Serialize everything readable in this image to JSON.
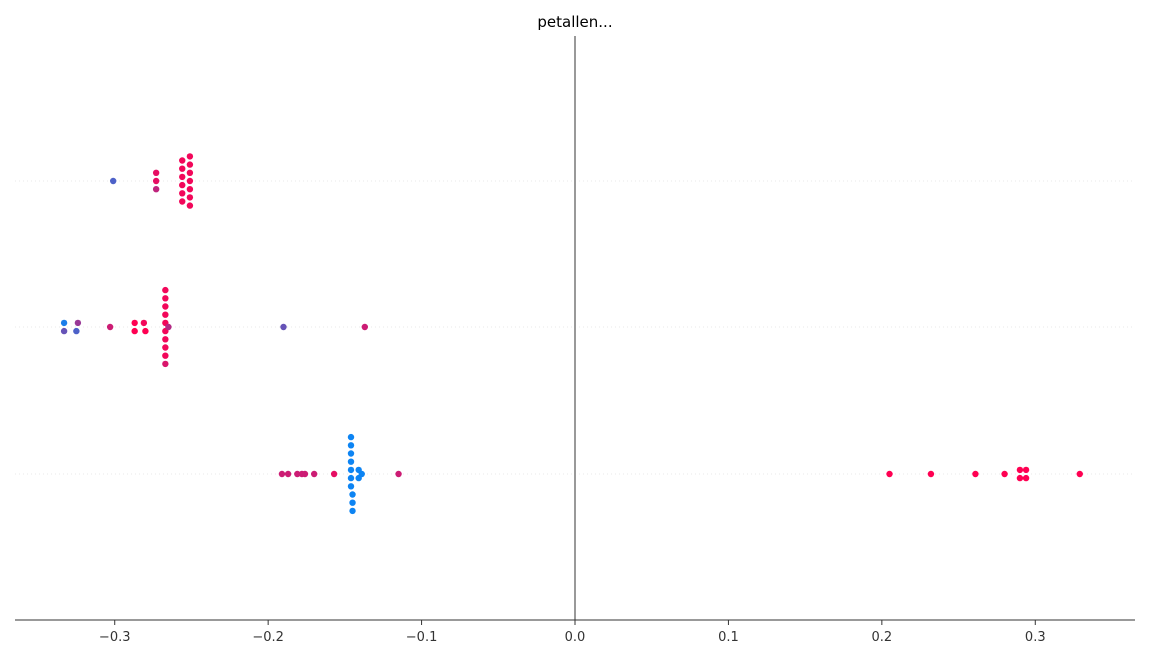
{
  "chart_data": {
    "type": "scatter",
    "title": "petallen...",
    "xlabel": "",
    "ylabel": "",
    "xlim": [
      -0.365,
      0.365
    ],
    "grid": "horizontal dotted row guides",
    "zero_line_color": "#999999",
    "xticks": [
      -0.3,
      -0.2,
      -0.1,
      0.0,
      0.1,
      0.2,
      0.3
    ],
    "xtick_labels": [
      "−0.3",
      "−0.2",
      "−0.1",
      "0.0",
      "0.1",
      "0.2",
      "0.3"
    ],
    "colors": {
      "low": "#008bfb",
      "high": "#ff0052"
    },
    "rows": [
      {
        "points": [
          {
            "x": -0.301,
            "c": 0.3
          },
          {
            "x": -0.273,
            "c": 0.9
          },
          {
            "x": -0.273,
            "c": 0.9
          },
          {
            "x": -0.273,
            "c": 0.75
          },
          {
            "x": -0.256,
            "c": 0.95
          },
          {
            "x": -0.256,
            "c": 0.95
          },
          {
            "x": -0.256,
            "c": 0.95
          },
          {
            "x": -0.256,
            "c": 0.95
          },
          {
            "x": -0.256,
            "c": 0.95
          },
          {
            "x": -0.256,
            "c": 0.95
          },
          {
            "x": -0.251,
            "c": 0.95
          },
          {
            "x": -0.251,
            "c": 0.95
          },
          {
            "x": -0.251,
            "c": 0.95
          },
          {
            "x": -0.251,
            "c": 0.95
          },
          {
            "x": -0.251,
            "c": 0.95
          },
          {
            "x": -0.251,
            "c": 0.95
          },
          {
            "x": -0.251,
            "c": 0.95
          }
        ]
      },
      {
        "points": [
          {
            "x": -0.333,
            "c": 0.1
          },
          {
            "x": -0.333,
            "c": 0.4
          },
          {
            "x": -0.324,
            "c": 0.6
          },
          {
            "x": -0.325,
            "c": 0.3
          },
          {
            "x": -0.303,
            "c": 0.8
          },
          {
            "x": -0.287,
            "c": 1.0
          },
          {
            "x": -0.287,
            "c": 1.0
          },
          {
            "x": -0.281,
            "c": 0.95
          },
          {
            "x": -0.28,
            "c": 1.0
          },
          {
            "x": -0.267,
            "c": 0.95
          },
          {
            "x": -0.267,
            "c": 0.95
          },
          {
            "x": -0.267,
            "c": 0.95
          },
          {
            "x": -0.267,
            "c": 0.95
          },
          {
            "x": -0.267,
            "c": 0.95
          },
          {
            "x": -0.267,
            "c": 0.95
          },
          {
            "x": -0.267,
            "c": 0.95
          },
          {
            "x": -0.267,
            "c": 0.95
          },
          {
            "x": -0.267,
            "c": 0.95
          },
          {
            "x": -0.267,
            "c": 0.85
          },
          {
            "x": -0.265,
            "c": 0.7
          },
          {
            "x": -0.19,
            "c": 0.4
          },
          {
            "x": -0.137,
            "c": 0.8
          }
        ]
      },
      {
        "points": [
          {
            "x": -0.191,
            "c": 0.8
          },
          {
            "x": -0.187,
            "c": 0.8
          },
          {
            "x": -0.181,
            "c": 0.8
          },
          {
            "x": -0.178,
            "c": 0.8
          },
          {
            "x": -0.176,
            "c": 0.8
          },
          {
            "x": -0.17,
            "c": 0.8
          },
          {
            "x": -0.157,
            "c": 0.9
          },
          {
            "x": -0.146,
            "c": 0.05
          },
          {
            "x": -0.146,
            "c": 0.05
          },
          {
            "x": -0.146,
            "c": 0.05
          },
          {
            "x": -0.146,
            "c": 0.05
          },
          {
            "x": -0.146,
            "c": 0.05
          },
          {
            "x": -0.146,
            "c": 0.05
          },
          {
            "x": -0.146,
            "c": 0.05
          },
          {
            "x": -0.145,
            "c": 0.05
          },
          {
            "x": -0.145,
            "c": 0.05
          },
          {
            "x": -0.145,
            "c": 0.05
          },
          {
            "x": -0.141,
            "c": 0.05
          },
          {
            "x": -0.141,
            "c": 0.05
          },
          {
            "x": -0.139,
            "c": 0.05
          },
          {
            "x": -0.115,
            "c": 0.8
          },
          {
            "x": 0.205,
            "c": 1.0
          },
          {
            "x": 0.232,
            "c": 1.0
          },
          {
            "x": 0.261,
            "c": 1.0
          },
          {
            "x": 0.28,
            "c": 1.0
          },
          {
            "x": 0.29,
            "c": 1.0
          },
          {
            "x": 0.29,
            "c": 1.0
          },
          {
            "x": 0.294,
            "c": 1.0
          },
          {
            "x": 0.294,
            "c": 1.0
          },
          {
            "x": 0.329,
            "c": 1.0
          }
        ]
      }
    ]
  }
}
